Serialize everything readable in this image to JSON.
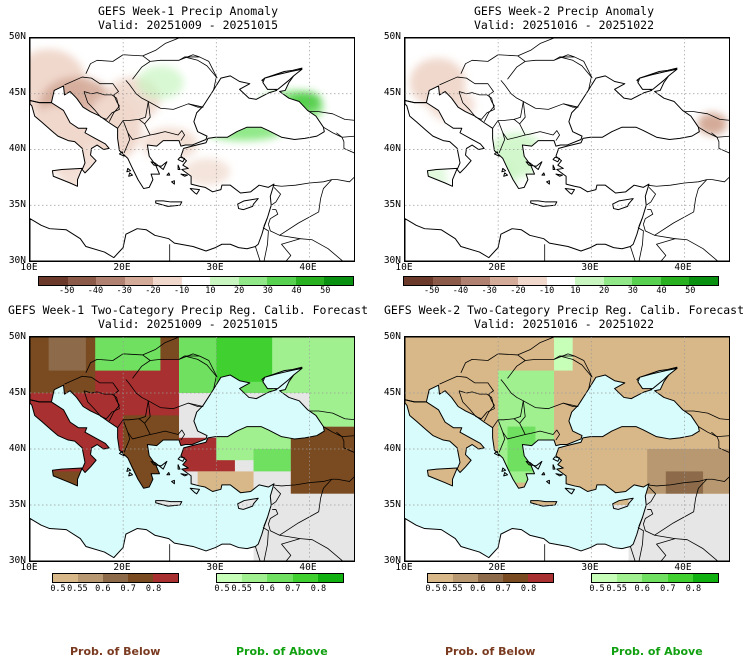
{
  "panels": [
    {
      "title": "GEFS Week-1 Precip Anomaly",
      "valid": "Valid: 20251009 - 20251015",
      "kind": "anomaly",
      "week": 1
    },
    {
      "title": "GEFS Week-2 Precip Anomaly",
      "valid": "Valid: 20251016 - 20251022",
      "kind": "anomaly",
      "week": 2
    },
    {
      "title": "GEFS Week-1 Two-Category Precip Reg. Calib. Forecast",
      "valid": "Valid: 20251009 - 20251015",
      "kind": "prob",
      "week": 1
    },
    {
      "title": "GEFS Week-2 Two-Category Precip Reg. Calib. Forecast",
      "valid": "Valid: 20251016 - 20251022",
      "kind": "prob",
      "week": 2
    }
  ],
  "lat_labels": [
    "50N",
    "45N",
    "40N",
    "35N",
    "30N"
  ],
  "lon_labels": [
    "10E",
    "20E",
    "30E",
    "40E"
  ],
  "anomaly_colorbar": {
    "labels": [
      "-50",
      "-40",
      "-30",
      "-20",
      "-10",
      "10",
      "20",
      "30",
      "40",
      "50"
    ],
    "colors": [
      "#6b3a2a",
      "#8c5a48",
      "#b08070",
      "#d4aa98",
      "#f0d8cc",
      "#ffffff",
      "#c8f5c0",
      "#90e888",
      "#58d050",
      "#28b020",
      "#0a9010"
    ]
  },
  "below_colorbar": {
    "labels": [
      "0.5",
      "0.55",
      "0.6",
      "0.7",
      "0.8"
    ],
    "colors": [
      "#d8b888",
      "#b89870",
      "#8c6a4a",
      "#7a4a20",
      "#a83030"
    ]
  },
  "above_colorbar": {
    "labels": [
      "0.5",
      "0.55",
      "0.6",
      "0.7",
      "0.8"
    ],
    "colors": [
      "#c8ffb8",
      "#a0f090",
      "#70e060",
      "#40d030",
      "#10b010"
    ]
  },
  "legend": {
    "below_label": "Prob. of Below",
    "above_label": "Prob. of Above",
    "below_color": "#7a3a20",
    "above_color": "#10a010"
  },
  "map_colors": {
    "sea_probability": "#d8fbfb",
    "land_probability_missing": "#e6e6e6",
    "grid_line": "#9a9a9a"
  }
}
